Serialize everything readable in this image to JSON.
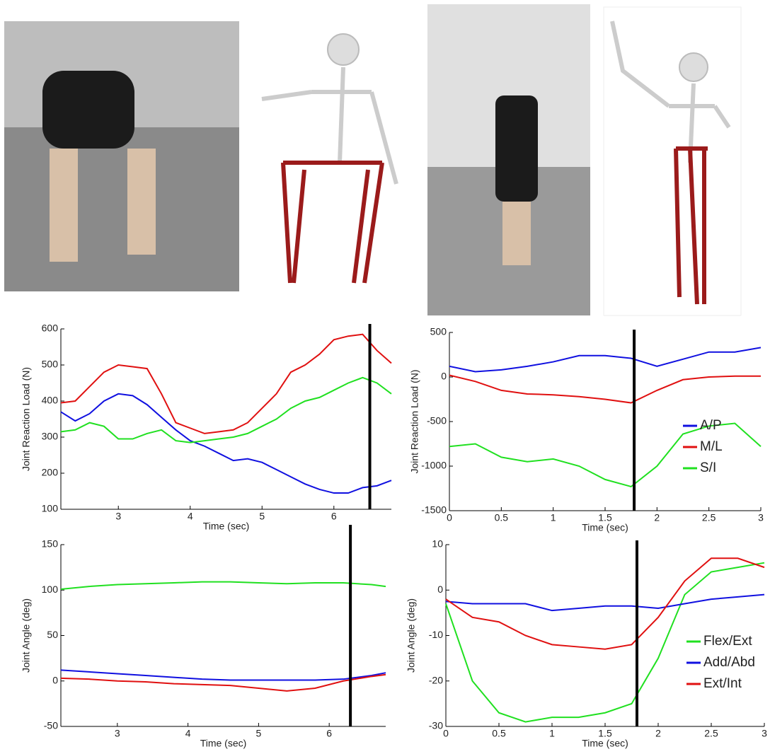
{
  "chart_data": [
    {
      "type": "line",
      "x_label": "Time (sec)",
      "y_label": "Joint Reaction Load (N)",
      "x": [
        2.2,
        2.4,
        2.6,
        2.8,
        3.0,
        3.2,
        3.4,
        3.6,
        3.8,
        4.0,
        4.2,
        4.4,
        4.6,
        4.8,
        5.0,
        5.2,
        5.4,
        5.6,
        5.8,
        6.0,
        6.2,
        6.4,
        6.6,
        6.8
      ],
      "series": [
        {
          "color": "#1010e0",
          "values": [
            370,
            345,
            365,
            400,
            420,
            415,
            390,
            355,
            320,
            290,
            275,
            255,
            235,
            240,
            230,
            210,
            190,
            170,
            155,
            145,
            145,
            160,
            165,
            180
          ]
        },
        {
          "color": "#e01010",
          "values": [
            395,
            400,
            440,
            480,
            500,
            495,
            490,
            420,
            340,
            325,
            310,
            315,
            320,
            340,
            380,
            420,
            480,
            500,
            530,
            570,
            580,
            585,
            540,
            505
          ]
        },
        {
          "color": "#20e020",
          "values": [
            315,
            320,
            340,
            330,
            295,
            295,
            310,
            320,
            290,
            285,
            290,
            295,
            300,
            310,
            330,
            350,
            380,
            400,
            410,
            430,
            450,
            465,
            450,
            420
          ]
        }
      ],
      "xlim": [
        2.2,
        6.8
      ],
      "xticks": [
        3,
        4,
        5,
        6
      ],
      "ylim": [
        100,
        600
      ],
      "yticks": [
        100,
        200,
        300,
        400,
        500,
        600
      ],
      "marker_x": 6.5
    },
    {
      "type": "line",
      "x_label": "Time (sec)",
      "y_label": "Joint Reaction Load (N)",
      "x": [
        0,
        0.25,
        0.5,
        0.75,
        1,
        1.25,
        1.5,
        1.75,
        2,
        2.25,
        2.5,
        2.75,
        3
      ],
      "series": [
        {
          "name": "A/P",
          "color": "#1010e0",
          "values": [
            120,
            60,
            80,
            120,
            170,
            240,
            240,
            210,
            120,
            200,
            280,
            280,
            330
          ]
        },
        {
          "name": "M/L",
          "color": "#e01010",
          "values": [
            20,
            -50,
            -150,
            -190,
            -200,
            -220,
            -250,
            -290,
            -150,
            -30,
            0,
            10,
            10
          ]
        },
        {
          "name": "S/I",
          "color": "#20e020",
          "values": [
            -780,
            -750,
            -900,
            -950,
            -920,
            -1000,
            -1150,
            -1230,
            -1000,
            -640,
            -550,
            -520,
            -780
          ]
        }
      ],
      "xlim": [
        0,
        3
      ],
      "xticks": [
        0,
        0.5,
        1,
        1.5,
        2,
        2.5,
        3
      ],
      "ylim": [
        -1500,
        500
      ],
      "yticks": [
        -1500,
        -1000,
        -500,
        0,
        500
      ],
      "marker_x": 1.78,
      "legend": "lower right"
    },
    {
      "type": "line",
      "x_label": "Time (sec)",
      "y_label": "Joint Angle (deg)",
      "x": [
        2.2,
        2.6,
        3.0,
        3.4,
        3.8,
        4.2,
        4.6,
        5.0,
        5.4,
        5.8,
        6.2,
        6.6,
        6.8
      ],
      "series": [
        {
          "color": "#20e020",
          "values": [
            101,
            104,
            106,
            107,
            108,
            109,
            109,
            108,
            107,
            108,
            108,
            106,
            104
          ]
        },
        {
          "color": "#1010e0",
          "values": [
            12,
            10,
            8,
            6,
            4,
            2,
            1,
            1,
            1,
            1,
            2,
            6,
            9
          ]
        },
        {
          "color": "#e01010",
          "values": [
            3,
            2,
            0,
            -1,
            -3,
            -4,
            -5,
            -8,
            -11,
            -8,
            0,
            5,
            7
          ]
        }
      ],
      "xlim": [
        2.2,
        6.8
      ],
      "xticks": [
        3,
        4,
        5,
        6
      ],
      "ylim": [
        -50,
        150
      ],
      "yticks": [
        -50,
        0,
        50,
        100,
        150
      ],
      "marker_x": 6.3
    },
    {
      "type": "line",
      "x_label": "Time (sec)",
      "y_label": "Joint Angle (deg)",
      "x": [
        0,
        0.25,
        0.5,
        0.75,
        1,
        1.25,
        1.5,
        1.75,
        2,
        2.25,
        2.5,
        2.75,
        3
      ],
      "series": [
        {
          "name": "Flex/Ext",
          "color": "#20e020",
          "values": [
            -3,
            -20,
            -27,
            -29,
            -28,
            -28,
            -27,
            -25,
            -15,
            -1,
            4,
            5,
            6
          ]
        },
        {
          "name": "Add/Abd",
          "color": "#1010e0",
          "values": [
            -2.5,
            -3,
            -3,
            -3,
            -4.5,
            -4,
            -3.5,
            -3.5,
            -4,
            -3,
            -2,
            -1.5,
            -1
          ]
        },
        {
          "name": "Ext/Int",
          "color": "#e01010",
          "values": [
            -2,
            -6,
            -7,
            -10,
            -12,
            -12.5,
            -13,
            -12,
            -6,
            2,
            7,
            7,
            5
          ]
        }
      ],
      "xlim": [
        0,
        3
      ],
      "xticks": [
        0,
        0.5,
        1,
        1.5,
        2,
        2.5,
        3
      ],
      "ylim": [
        -30,
        10
      ],
      "yticks": [
        -30,
        -20,
        -10,
        0,
        10
      ],
      "marker_x": 1.8,
      "legend": "lower right"
    }
  ]
}
